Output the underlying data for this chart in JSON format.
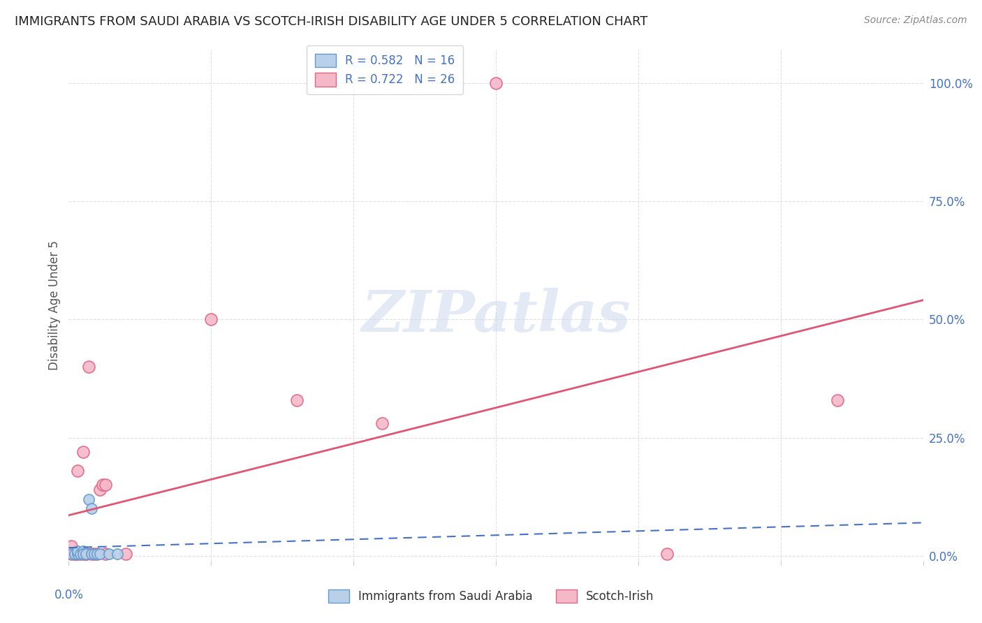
{
  "title": "IMMIGRANTS FROM SAUDI ARABIA VS SCOTCH-IRISH DISABILITY AGE UNDER 5 CORRELATION CHART",
  "source": "Source: ZipAtlas.com",
  "ylabel": "Disability Age Under 5",
  "ytick_labels": [
    "0.0%",
    "25.0%",
    "50.0%",
    "75.0%",
    "100.0%"
  ],
  "ytick_values": [
    0.0,
    0.25,
    0.5,
    0.75,
    1.0
  ],
  "xlim": [
    0.0,
    0.3
  ],
  "ylim": [
    -0.01,
    1.07
  ],
  "title_color": "#222222",
  "title_fontsize": 13,
  "axis_color": "#4472c4",
  "watermark": "ZIPatlas",
  "saudi_color": "#b8d0e8",
  "saudi_edge_color": "#6699cc",
  "scotch_color": "#f5b8c8",
  "scotch_edge_color": "#e06688",
  "regression_saudi_color": "#4472c4",
  "regression_scotch_color": "#e05575",
  "saudi_points_x": [
    0.001,
    0.002,
    0.003,
    0.003,
    0.004,
    0.005,
    0.005,
    0.006,
    0.007,
    0.008,
    0.008,
    0.009,
    0.01,
    0.011,
    0.014,
    0.017
  ],
  "saudi_points_y": [
    0.005,
    0.005,
    0.005,
    0.01,
    0.005,
    0.01,
    0.005,
    0.005,
    0.12,
    0.005,
    0.1,
    0.005,
    0.005,
    0.005,
    0.005,
    0.005
  ],
  "scotch_points_x": [
    0.001,
    0.001,
    0.002,
    0.002,
    0.003,
    0.003,
    0.004,
    0.005,
    0.005,
    0.006,
    0.006,
    0.007,
    0.008,
    0.009,
    0.01,
    0.011,
    0.012,
    0.013,
    0.013,
    0.02,
    0.05,
    0.08,
    0.11,
    0.15,
    0.21,
    0.27
  ],
  "scotch_points_y": [
    0.005,
    0.02,
    0.005,
    0.005,
    0.005,
    0.18,
    0.005,
    0.005,
    0.22,
    0.005,
    0.005,
    0.4,
    0.005,
    0.005,
    0.005,
    0.14,
    0.15,
    0.15,
    0.005,
    0.005,
    0.5,
    0.33,
    0.28,
    1.0,
    0.005,
    0.33
  ],
  "grid_color": "#e0e0e0",
  "background_color": "#ffffff",
  "marker_size_saudi": 120,
  "marker_size_scotch": 150
}
